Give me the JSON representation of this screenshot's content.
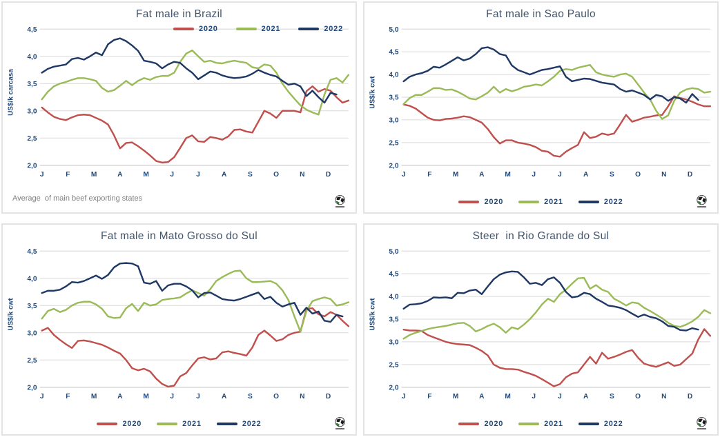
{
  "styles": {
    "grid_color": "#D9D9D9",
    "axis_color": "#BFBFBF",
    "tick_text_color": "#1F497D",
    "title_color": "#44546A",
    "note_color": "#7F7F7F",
    "panel_border": "#E3E3E3",
    "series_colors": {
      "red_2020": "#C0504D",
      "green_2021": "#9BBB59",
      "navy_2022": "#1F3864"
    },
    "decimal_separator": ","
  },
  "chart_data": [
    {
      "type": "line",
      "title": "Fat male in Brazil",
      "ylabel": "US$/k carcasa",
      "ylim": [
        2.0,
        4.5
      ],
      "ytick_step": 0.5,
      "categories": [
        "J",
        "F",
        "M",
        "A",
        "M",
        "J",
        "J",
        "A",
        "S",
        "O",
        "N",
        "D"
      ],
      "x_unit": "weeks",
      "grid": true,
      "legend_position": "top-right",
      "note": "Average  of main beef exporting states",
      "series": [
        {
          "name": "2020",
          "color": "#C0504D",
          "values": [
            3.06,
            2.97,
            2.89,
            2.85,
            2.83,
            2.88,
            2.92,
            2.93,
            2.92,
            2.87,
            2.82,
            2.75,
            2.55,
            2.31,
            2.41,
            2.42,
            2.35,
            2.27,
            2.18,
            2.08,
            2.05,
            2.06,
            2.15,
            2.32,
            2.5,
            2.55,
            2.44,
            2.43,
            2.52,
            2.5,
            2.47,
            2.53,
            2.65,
            2.66,
            2.62,
            2.6,
            2.8,
            3.0,
            2.95,
            2.87,
            3.0,
            3.0,
            3.0,
            2.97,
            3.36,
            3.45,
            3.35,
            3.4,
            3.37,
            3.25,
            3.15,
            3.19
          ]
        },
        {
          "name": "2021",
          "color": "#9BBB59",
          "values": [
            3.21,
            3.35,
            3.45,
            3.5,
            3.53,
            3.57,
            3.6,
            3.6,
            3.58,
            3.55,
            3.42,
            3.35,
            3.38,
            3.46,
            3.55,
            3.47,
            3.55,
            3.6,
            3.57,
            3.62,
            3.64,
            3.64,
            3.7,
            3.9,
            4.05,
            4.11,
            4.0,
            3.9,
            3.92,
            3.88,
            3.87,
            3.9,
            3.92,
            3.9,
            3.88,
            3.8,
            3.78,
            3.85,
            3.83,
            3.7,
            3.5,
            3.35,
            3.22,
            3.1,
            3.02,
            2.97,
            2.93,
            3.3,
            3.57,
            3.6,
            3.52,
            3.66
          ]
        },
        {
          "name": "2022",
          "color": "#1F3864",
          "values": [
            3.7,
            3.77,
            3.81,
            3.83,
            3.85,
            3.95,
            3.97,
            3.94,
            4.0,
            4.07,
            4.02,
            4.22,
            4.3,
            4.33,
            4.28,
            4.2,
            4.1,
            3.92,
            3.9,
            3.87,
            3.78,
            3.85,
            3.9,
            3.88,
            3.78,
            3.7,
            3.58,
            3.65,
            3.72,
            3.7,
            3.65,
            3.62,
            3.6,
            3.61,
            3.63,
            3.68,
            3.75,
            3.7,
            3.66,
            3.63,
            3.55,
            3.48,
            3.5,
            3.45,
            3.27,
            3.37,
            3.25,
            3.15,
            3.33,
            3.3
          ]
        }
      ]
    },
    {
      "type": "line",
      "title": "Fat male in Sao Paulo",
      "ylabel": "US$/k cwt",
      "ylim": [
        2.0,
        5.0
      ],
      "ytick_step": 0.5,
      "categories": [
        "J",
        "F",
        "M",
        "A",
        "M",
        "J",
        "J",
        "A",
        "S",
        "O",
        "N",
        "D"
      ],
      "x_unit": "weeks",
      "grid": true,
      "legend_position": "bottom",
      "note": "",
      "series": [
        {
          "name": "2020",
          "color": "#C0504D",
          "values": [
            3.34,
            3.31,
            3.25,
            3.15,
            3.05,
            3.0,
            2.99,
            3.02,
            3.03,
            3.05,
            3.08,
            3.06,
            3.0,
            2.94,
            2.8,
            2.62,
            2.48,
            2.55,
            2.55,
            2.5,
            2.48,
            2.45,
            2.4,
            2.32,
            2.3,
            2.21,
            2.19,
            2.3,
            2.38,
            2.45,
            2.73,
            2.6,
            2.63,
            2.7,
            2.67,
            2.7,
            2.9,
            3.11,
            2.96,
            3.0,
            3.05,
            3.07,
            3.1,
            3.11,
            3.3,
            3.52,
            3.48,
            3.45,
            3.4,
            3.34,
            3.3,
            3.3
          ]
        },
        {
          "name": "2021",
          "color": "#9BBB59",
          "values": [
            3.35,
            3.48,
            3.55,
            3.55,
            3.62,
            3.7,
            3.7,
            3.66,
            3.67,
            3.62,
            3.55,
            3.47,
            3.45,
            3.52,
            3.6,
            3.73,
            3.6,
            3.68,
            3.63,
            3.67,
            3.73,
            3.75,
            3.78,
            3.76,
            3.85,
            3.95,
            4.08,
            4.12,
            4.1,
            4.15,
            4.18,
            4.21,
            4.05,
            4.0,
            3.97,
            3.95,
            4.0,
            4.02,
            3.95,
            3.78,
            3.6,
            3.45,
            3.2,
            3.02,
            3.1,
            3.42,
            3.6,
            3.67,
            3.7,
            3.68,
            3.6,
            3.62
          ]
        },
        {
          "name": "2022",
          "color": "#1F3864",
          "values": [
            3.85,
            3.95,
            4.0,
            4.03,
            4.08,
            4.17,
            4.15,
            4.22,
            4.3,
            4.38,
            4.31,
            4.35,
            4.45,
            4.58,
            4.6,
            4.55,
            4.45,
            4.42,
            4.2,
            4.1,
            4.05,
            4.0,
            4.05,
            4.1,
            4.12,
            4.15,
            4.18,
            3.95,
            3.85,
            3.88,
            3.91,
            3.9,
            3.86,
            3.82,
            3.8,
            3.78,
            3.68,
            3.62,
            3.65,
            3.6,
            3.55,
            3.45,
            3.55,
            3.52,
            3.42,
            3.5,
            3.47,
            3.38,
            3.57,
            3.44
          ]
        }
      ]
    },
    {
      "type": "line",
      "title": "Fat male in Mato Grosso do Sul",
      "ylabel": "US$/k cwt",
      "ylim": [
        2.0,
        4.5
      ],
      "ytick_step": 0.5,
      "categories": [
        "J",
        "F",
        "M",
        "A",
        "M",
        "J",
        "J",
        "A",
        "S",
        "O",
        "N",
        "D"
      ],
      "x_unit": "weeks",
      "grid": true,
      "legend_position": "bottom",
      "note": "",
      "series": [
        {
          "name": "2020",
          "color": "#C0504D",
          "values": [
            3.04,
            3.09,
            2.96,
            2.87,
            2.79,
            2.72,
            2.85,
            2.86,
            2.84,
            2.81,
            2.78,
            2.73,
            2.67,
            2.62,
            2.5,
            2.35,
            2.31,
            2.34,
            2.29,
            2.16,
            2.06,
            2.01,
            2.03,
            2.2,
            2.26,
            2.4,
            2.53,
            2.55,
            2.51,
            2.53,
            2.64,
            2.66,
            2.63,
            2.61,
            2.58,
            2.73,
            2.96,
            3.04,
            2.95,
            2.85,
            2.88,
            2.96,
            3.0,
            3.02,
            3.44,
            3.45,
            3.34,
            3.3,
            3.38,
            3.33,
            3.22,
            3.12
          ]
        },
        {
          "name": "2021",
          "color": "#9BBB59",
          "values": [
            3.26,
            3.4,
            3.44,
            3.38,
            3.42,
            3.5,
            3.55,
            3.57,
            3.57,
            3.52,
            3.44,
            3.3,
            3.27,
            3.28,
            3.45,
            3.53,
            3.4,
            3.55,
            3.5,
            3.52,
            3.6,
            3.62,
            3.63,
            3.65,
            3.72,
            3.78,
            3.73,
            3.68,
            3.8,
            3.95,
            4.02,
            4.08,
            4.13,
            4.14,
            4.0,
            3.93,
            3.93,
            3.94,
            3.95,
            3.9,
            3.78,
            3.6,
            3.3,
            3.02,
            3.4,
            3.58,
            3.62,
            3.65,
            3.62,
            3.5,
            3.52,
            3.56
          ]
        },
        {
          "name": "2022",
          "color": "#1F3864",
          "values": [
            3.73,
            3.77,
            3.77,
            3.79,
            3.85,
            3.93,
            3.92,
            3.95,
            4.0,
            4.05,
            3.99,
            4.06,
            4.2,
            4.27,
            4.28,
            4.27,
            4.22,
            3.92,
            3.9,
            3.95,
            3.77,
            3.87,
            3.9,
            3.9,
            3.85,
            3.78,
            3.65,
            3.73,
            3.74,
            3.68,
            3.62,
            3.6,
            3.59,
            3.62,
            3.66,
            3.7,
            3.74,
            3.62,
            3.66,
            3.55,
            3.48,
            3.52,
            3.55,
            3.33,
            3.46,
            3.35,
            3.39,
            3.22,
            3.2,
            3.33,
            3.3
          ]
        }
      ]
    },
    {
      "type": "line",
      "title": "Steer  in Rio Grande do Sul",
      "ylabel": "US$/k cwt",
      "ylim": [
        2.0,
        5.0
      ],
      "ytick_step": 0.5,
      "categories": [
        "J",
        "F",
        "M",
        "A",
        "M",
        "J",
        "J",
        "A",
        "S",
        "O",
        "N",
        "D"
      ],
      "x_unit": "weeks",
      "grid": true,
      "legend_position": "bottom",
      "note": "",
      "series": [
        {
          "name": "2020",
          "color": "#C0504D",
          "values": [
            3.27,
            3.25,
            3.25,
            3.24,
            3.15,
            3.1,
            3.05,
            3.0,
            2.97,
            2.95,
            2.94,
            2.93,
            2.87,
            2.8,
            2.7,
            2.5,
            2.43,
            2.4,
            2.4,
            2.39,
            2.34,
            2.3,
            2.25,
            2.18,
            2.1,
            2.02,
            2.07,
            2.22,
            2.3,
            2.33,
            2.5,
            2.67,
            2.52,
            2.76,
            2.63,
            2.67,
            2.72,
            2.78,
            2.82,
            2.65,
            2.52,
            2.48,
            2.45,
            2.5,
            2.55,
            2.47,
            2.5,
            2.62,
            2.74,
            3.05,
            3.28,
            3.13
          ]
        },
        {
          "name": "2021",
          "color": "#9BBB59",
          "values": [
            3.07,
            3.15,
            3.2,
            3.24,
            3.28,
            3.31,
            3.33,
            3.35,
            3.38,
            3.41,
            3.42,
            3.35,
            3.23,
            3.28,
            3.35,
            3.4,
            3.32,
            3.2,
            3.32,
            3.28,
            3.38,
            3.5,
            3.65,
            3.82,
            3.95,
            3.88,
            4.05,
            4.15,
            4.28,
            4.4,
            4.41,
            4.17,
            4.25,
            4.15,
            4.1,
            3.95,
            3.88,
            3.8,
            3.87,
            3.85,
            3.75,
            3.68,
            3.6,
            3.52,
            3.42,
            3.35,
            3.33,
            3.38,
            3.45,
            3.55,
            3.7,
            3.63
          ]
        },
        {
          "name": "2022",
          "color": "#1F3864",
          "values": [
            3.73,
            3.82,
            3.83,
            3.85,
            3.9,
            3.98,
            3.97,
            3.98,
            3.96,
            4.08,
            4.07,
            4.13,
            4.15,
            4.05,
            4.22,
            4.38,
            4.48,
            4.53,
            4.55,
            4.54,
            4.42,
            4.28,
            4.3,
            4.25,
            4.38,
            4.42,
            4.3,
            4.1,
            3.98,
            4.0,
            4.08,
            4.05,
            3.95,
            3.88,
            3.8,
            3.78,
            3.75,
            3.7,
            3.62,
            3.55,
            3.6,
            3.55,
            3.52,
            3.45,
            3.35,
            3.33,
            3.26,
            3.25,
            3.3,
            3.27
          ]
        }
      ]
    }
  ]
}
